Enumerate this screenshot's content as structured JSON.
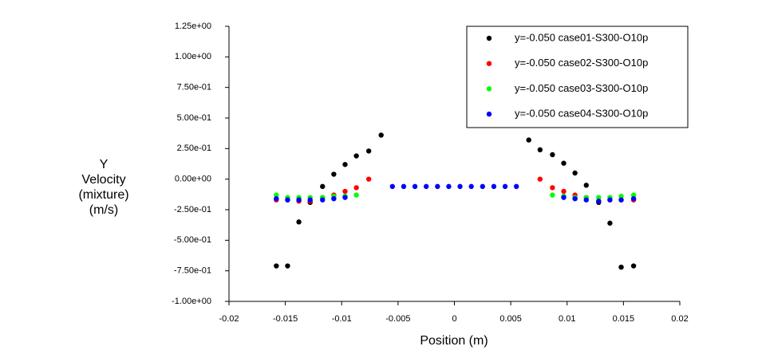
{
  "chart_data": {
    "type": "scatter",
    "xlabel": "Position (m)",
    "ylabel": [
      "Y",
      "Velocity",
      "(mixture)",
      "(m/s)"
    ],
    "xlim": [
      -0.02,
      0.02
    ],
    "xticks": [
      -0.02,
      -0.015,
      -0.01,
      -0.005,
      0,
      0.005,
      0.01,
      0.015,
      0.02
    ],
    "ylim": [
      -1.0,
      1.25
    ],
    "yticks": [
      {
        "value": -1.0,
        "label": "-1.00e+00"
      },
      {
        "value": -0.75,
        "label": "-7.50e-01"
      },
      {
        "value": -0.5,
        "label": "-5.00e-01"
      },
      {
        "value": -0.25,
        "label": "-2.50e-01"
      },
      {
        "value": 0,
        "label": "0.00e+00"
      },
      {
        "value": 0.25,
        "label": "2.50e-01"
      },
      {
        "value": 0.5,
        "label": "5.00e-01"
      },
      {
        "value": 0.75,
        "label": "7.50e-01"
      },
      {
        "value": 1.0,
        "label": "1.00e+00"
      },
      {
        "value": 1.25,
        "label": "1.25e+00"
      }
    ],
    "legend": "upper right",
    "series": [
      {
        "name": "y=-0.050 case01-S300-O10p",
        "color": "#000000",
        "x": [
          -0.0158,
          -0.0148,
          -0.0138,
          -0.0128,
          -0.0117,
          -0.0107,
          -0.0097,
          -0.0087,
          -0.0076,
          -0.0065,
          0.0066,
          0.0076,
          0.0087,
          0.0097,
          0.0107,
          0.0117,
          0.0128,
          0.0138,
          0.0148,
          0.0159
        ],
        "values": [
          -0.71,
          -0.71,
          -0.35,
          -0.19,
          -0.06,
          0.04,
          0.12,
          0.19,
          0.23,
          0.36,
          0.32,
          0.24,
          0.2,
          0.13,
          0.05,
          -0.05,
          -0.19,
          -0.36,
          -0.72,
          -0.71
        ]
      },
      {
        "name": "y=-0.050 case02-S300-O10p",
        "color": "#ff0000",
        "x": [
          -0.0158,
          -0.0148,
          -0.0138,
          -0.0128,
          -0.0117,
          -0.0107,
          -0.0097,
          -0.0087,
          -0.0076,
          0.0076,
          0.0087,
          0.0097,
          0.0107,
          0.0117,
          0.0128,
          0.0138,
          0.0148,
          0.0159
        ],
        "values": [
          -0.17,
          -0.17,
          -0.18,
          -0.18,
          -0.15,
          -0.13,
          -0.1,
          -0.07,
          0.0,
          0.0,
          -0.07,
          -0.1,
          -0.13,
          -0.15,
          -0.18,
          -0.17,
          -0.17,
          -0.17
        ]
      },
      {
        "name": "y=-0.050 case03-S300-O10p",
        "color": "#00ff00",
        "x": [
          -0.0158,
          -0.0148,
          -0.0138,
          -0.0128,
          -0.0117,
          -0.0107,
          -0.0097,
          -0.0087,
          0.0087,
          0.0097,
          0.0107,
          0.0117,
          0.0128,
          0.0138,
          0.0148,
          0.0159
        ],
        "values": [
          -0.13,
          -0.15,
          -0.15,
          -0.15,
          -0.15,
          -0.14,
          -0.14,
          -0.13,
          -0.13,
          -0.14,
          -0.15,
          -0.15,
          -0.15,
          -0.15,
          -0.14,
          -0.13
        ]
      },
      {
        "name": "y=-0.050 case04-S300-O10p",
        "color": "#0000ff",
        "x": [
          -0.0158,
          -0.0148,
          -0.0138,
          -0.0128,
          -0.0117,
          -0.0107,
          -0.0097,
          -0.0055,
          -0.0045,
          -0.0035,
          -0.0025,
          -0.0015,
          -0.0005,
          0.0005,
          0.0015,
          0.0025,
          0.0035,
          0.0045,
          0.0055,
          0.0097,
          0.0107,
          0.0117,
          0.0128,
          0.0138,
          0.0148,
          0.0159
        ],
        "values": [
          -0.16,
          -0.17,
          -0.17,
          -0.17,
          -0.17,
          -0.16,
          -0.15,
          -0.06,
          -0.06,
          -0.06,
          -0.06,
          -0.06,
          -0.06,
          -0.06,
          -0.06,
          -0.06,
          -0.06,
          -0.06,
          -0.06,
          -0.15,
          -0.16,
          -0.17,
          -0.18,
          -0.17,
          -0.17,
          -0.16
        ]
      }
    ]
  }
}
